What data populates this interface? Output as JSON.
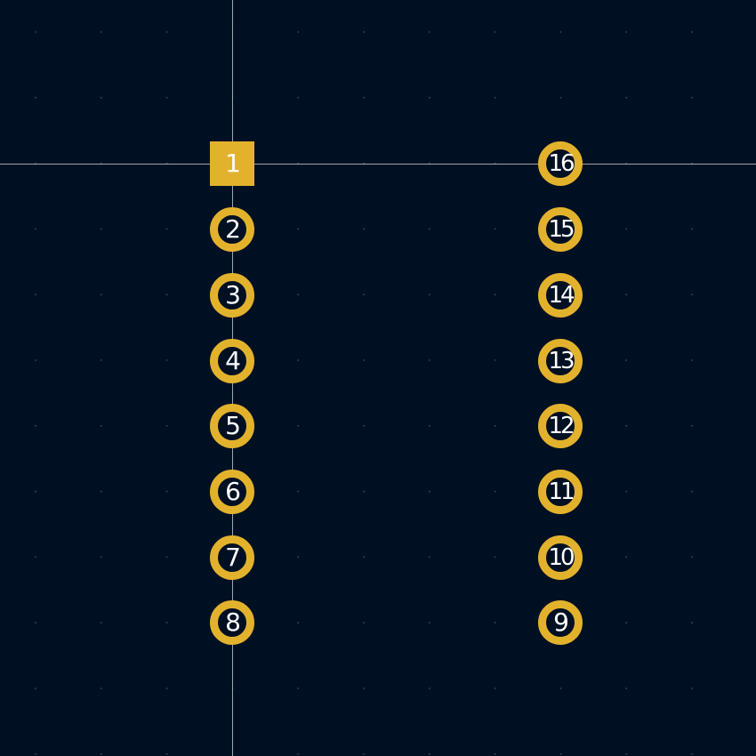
{
  "canvas": {
    "background": "#001023",
    "grid_color": "#3a4a5c",
    "pad_color": "#e3b22d",
    "crosshair_color": "#b9c0c8",
    "label_color": "#ffffff"
  },
  "footprint": {
    "pads_left": [
      {
        "number": "1",
        "shape": "square"
      },
      {
        "number": "2",
        "shape": "circle"
      },
      {
        "number": "3",
        "shape": "circle"
      },
      {
        "number": "4",
        "shape": "circle"
      },
      {
        "number": "5",
        "shape": "circle"
      },
      {
        "number": "6",
        "shape": "circle"
      },
      {
        "number": "7",
        "shape": "circle"
      },
      {
        "number": "8",
        "shape": "circle"
      }
    ],
    "pads_right": [
      {
        "number": "16",
        "shape": "circle"
      },
      {
        "number": "15",
        "shape": "circle"
      },
      {
        "number": "14",
        "shape": "circle"
      },
      {
        "number": "13",
        "shape": "circle"
      },
      {
        "number": "12",
        "shape": "circle"
      },
      {
        "number": "11",
        "shape": "circle"
      },
      {
        "number": "10",
        "shape": "circle"
      },
      {
        "number": "9",
        "shape": "circle"
      }
    ]
  }
}
